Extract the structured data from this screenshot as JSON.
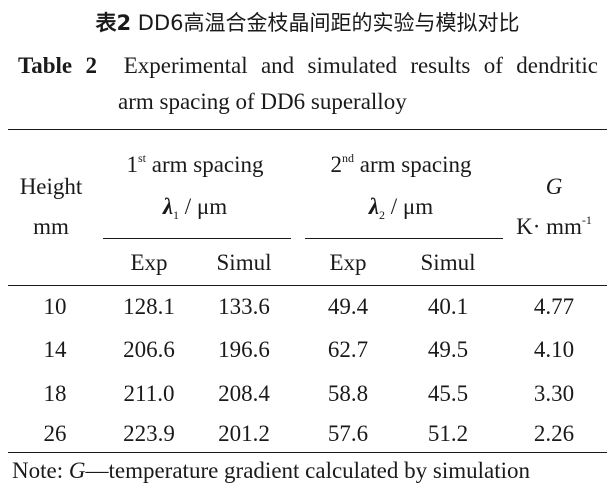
{
  "caption": {
    "cn_label": "表2",
    "cn_title": "DD6高温合金枝晶间距的实验与模拟对比",
    "en_label": "Table 2",
    "en_title_line1": "Experimental and simulated results of dendritic",
    "en_title_line2": "arm spacing of DD6 superalloy"
  },
  "header": {
    "height_line1": "Height",
    "height_line2": "mm",
    "first_prefix": "1",
    "first_sup": "st",
    "first_suffix": " arm spacing",
    "first_symbol": "λ",
    "first_sub": "1",
    "first_unit": " / μm",
    "second_prefix": "2",
    "second_sup": "nd",
    "second_suffix": " arm spacing",
    "second_symbol": "λ",
    "second_sub": "2",
    "second_unit": " / μm",
    "g_symbol": "G",
    "g_unit": "K· mm",
    "g_unit_sup": "-1",
    "exp1": "Exp",
    "simul1": "Simul",
    "exp2": "Exp",
    "simul2": "Simul"
  },
  "rows": [
    {
      "height": "10",
      "exp1": "128.1",
      "simul1": "133.6",
      "exp2": "49.4",
      "simul2": "40.1",
      "g": "4.77"
    },
    {
      "height": "14",
      "exp1": "206.6",
      "simul1": "196.6",
      "exp2": "62.7",
      "simul2": "49.5",
      "g": "4.10"
    },
    {
      "height": "18",
      "exp1": "211.0",
      "simul1": "208.4",
      "exp2": "58.8",
      "simul2": "45.5",
      "g": "3.30"
    },
    {
      "height": "26",
      "exp1": "223.9",
      "simul1": "201.2",
      "exp2": "57.6",
      "simul2": "51.2",
      "g": "2.26"
    }
  ],
  "note": {
    "prefix": "Note: ",
    "symbol": "G",
    "text": "—temperature gradient calculated by simulation"
  }
}
